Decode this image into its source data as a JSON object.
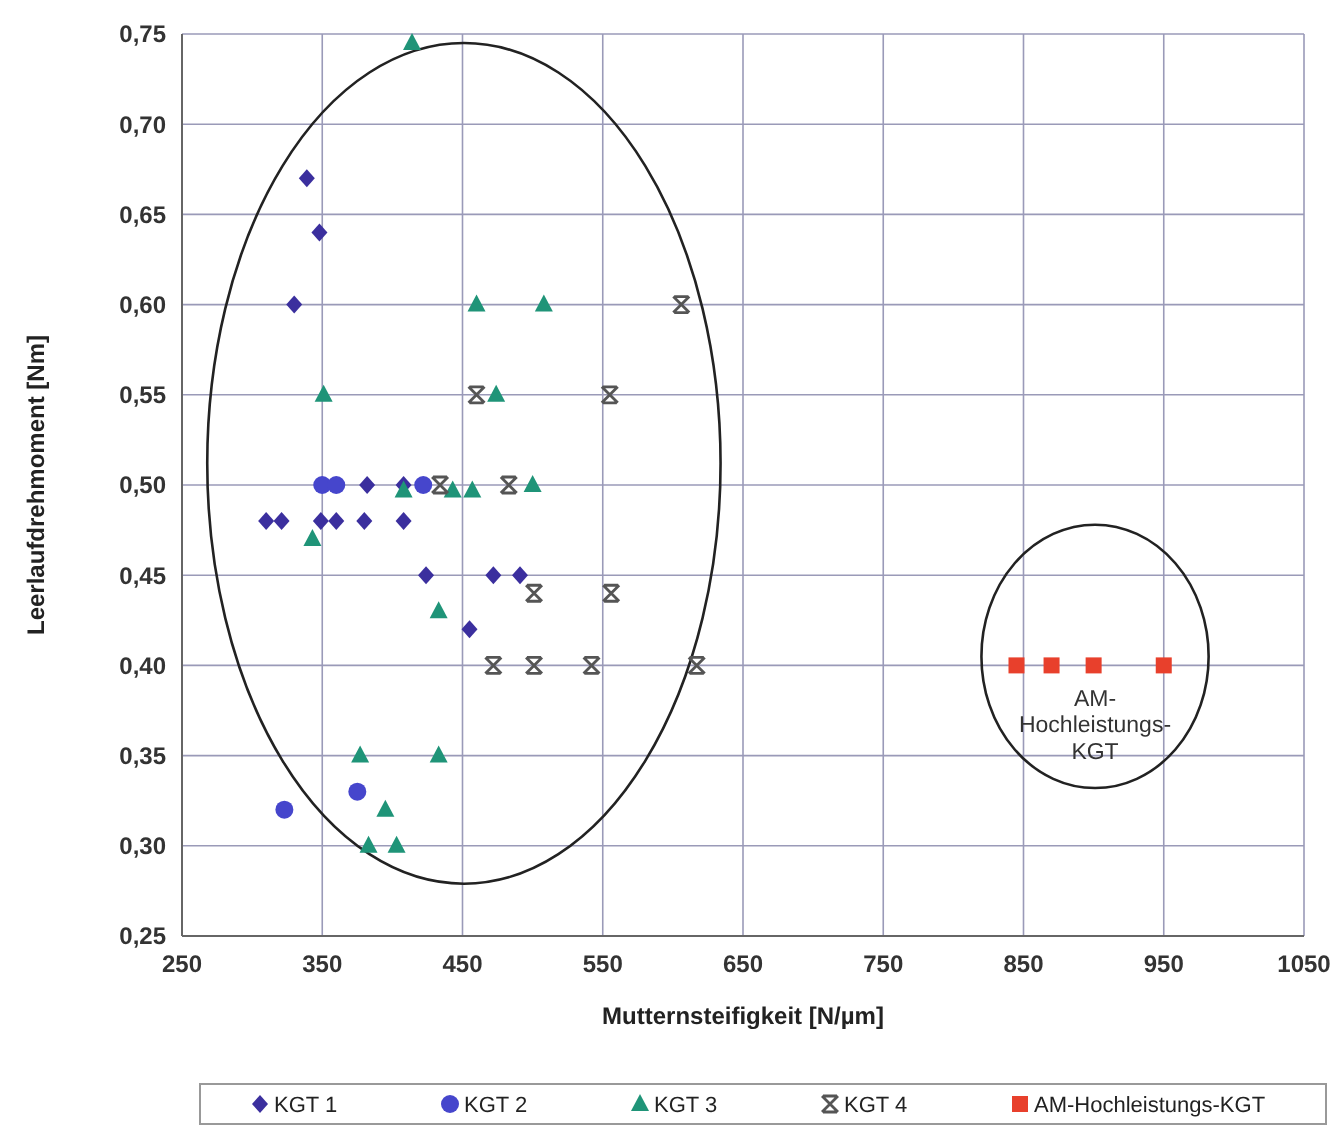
{
  "chart_data": {
    "type": "scatter",
    "xlabel": "Mutternsteifigkeit [N/µm]",
    "ylabel": "Leerlaufdrehmoment [Nm]",
    "xlim": [
      250,
      1050
    ],
    "xticks": [
      250,
      350,
      450,
      550,
      650,
      750,
      850,
      950,
      1050
    ],
    "ylim": [
      0.25,
      0.75
    ],
    "yticks": [
      {
        "value": 0.25,
        "label": "0,25"
      },
      {
        "value": 0.3,
        "label": "0,30"
      },
      {
        "value": 0.35,
        "label": "0,35"
      },
      {
        "value": 0.4,
        "label": "0,40"
      },
      {
        "value": 0.45,
        "label": "0,45"
      },
      {
        "value": 0.5,
        "label": "0,50"
      },
      {
        "value": 0.55,
        "label": "0,55"
      },
      {
        "value": 0.6,
        "label": "0,60"
      },
      {
        "value": 0.65,
        "label": "0,65"
      },
      {
        "value": 0.7,
        "label": "0,70"
      },
      {
        "value": 0.75,
        "label": "0,75"
      }
    ],
    "grid": true,
    "legend": "bottom",
    "series": [
      {
        "name": "KGT 1",
        "color": "#3b2f9e",
        "marker": "diamond",
        "x": [
          339,
          348,
          330,
          382,
          408,
          310,
          321,
          349,
          360,
          380,
          408,
          424,
          472,
          491,
          455
        ],
        "values": [
          0.67,
          0.64,
          0.6,
          0.5,
          0.5,
          0.48,
          0.48,
          0.48,
          0.48,
          0.48,
          0.48,
          0.45,
          0.45,
          0.45,
          0.42
        ]
      },
      {
        "name": "KGT 2",
        "color": "#4646cc",
        "marker": "circle",
        "x": [
          350,
          360,
          422,
          375,
          323
        ],
        "values": [
          0.5,
          0.5,
          0.5,
          0.33,
          0.32
        ]
      },
      {
        "name": "KGT 3",
        "color": "#1f9478",
        "marker": "triangle",
        "x": [
          414,
          460,
          508,
          351,
          474,
          500,
          408,
          443,
          457,
          343,
          433,
          377,
          433,
          395,
          383,
          403
        ],
        "values": [
          0.745,
          0.6,
          0.6,
          0.55,
          0.55,
          0.5,
          0.497,
          0.497,
          0.497,
          0.47,
          0.43,
          0.35,
          0.35,
          0.32,
          0.3,
          0.3
        ]
      },
      {
        "name": "KGT 4",
        "color": "#555555",
        "marker": "cross",
        "x": [
          606,
          460,
          555,
          434,
          483,
          501,
          556,
          472,
          501,
          542,
          617
        ],
        "values": [
          0.6,
          0.55,
          0.55,
          0.5,
          0.5,
          0.44,
          0.44,
          0.4,
          0.4,
          0.4,
          0.4
        ]
      },
      {
        "name": "AM-Hochleistungs-KGT",
        "color": "#e8402c",
        "marker": "square",
        "x": [
          845,
          870,
          900,
          950
        ],
        "values": [
          0.4,
          0.4,
          0.4,
          0.4
        ]
      }
    ],
    "annotations": [
      "AM-Hochleistungs-KGT"
    ]
  }
}
